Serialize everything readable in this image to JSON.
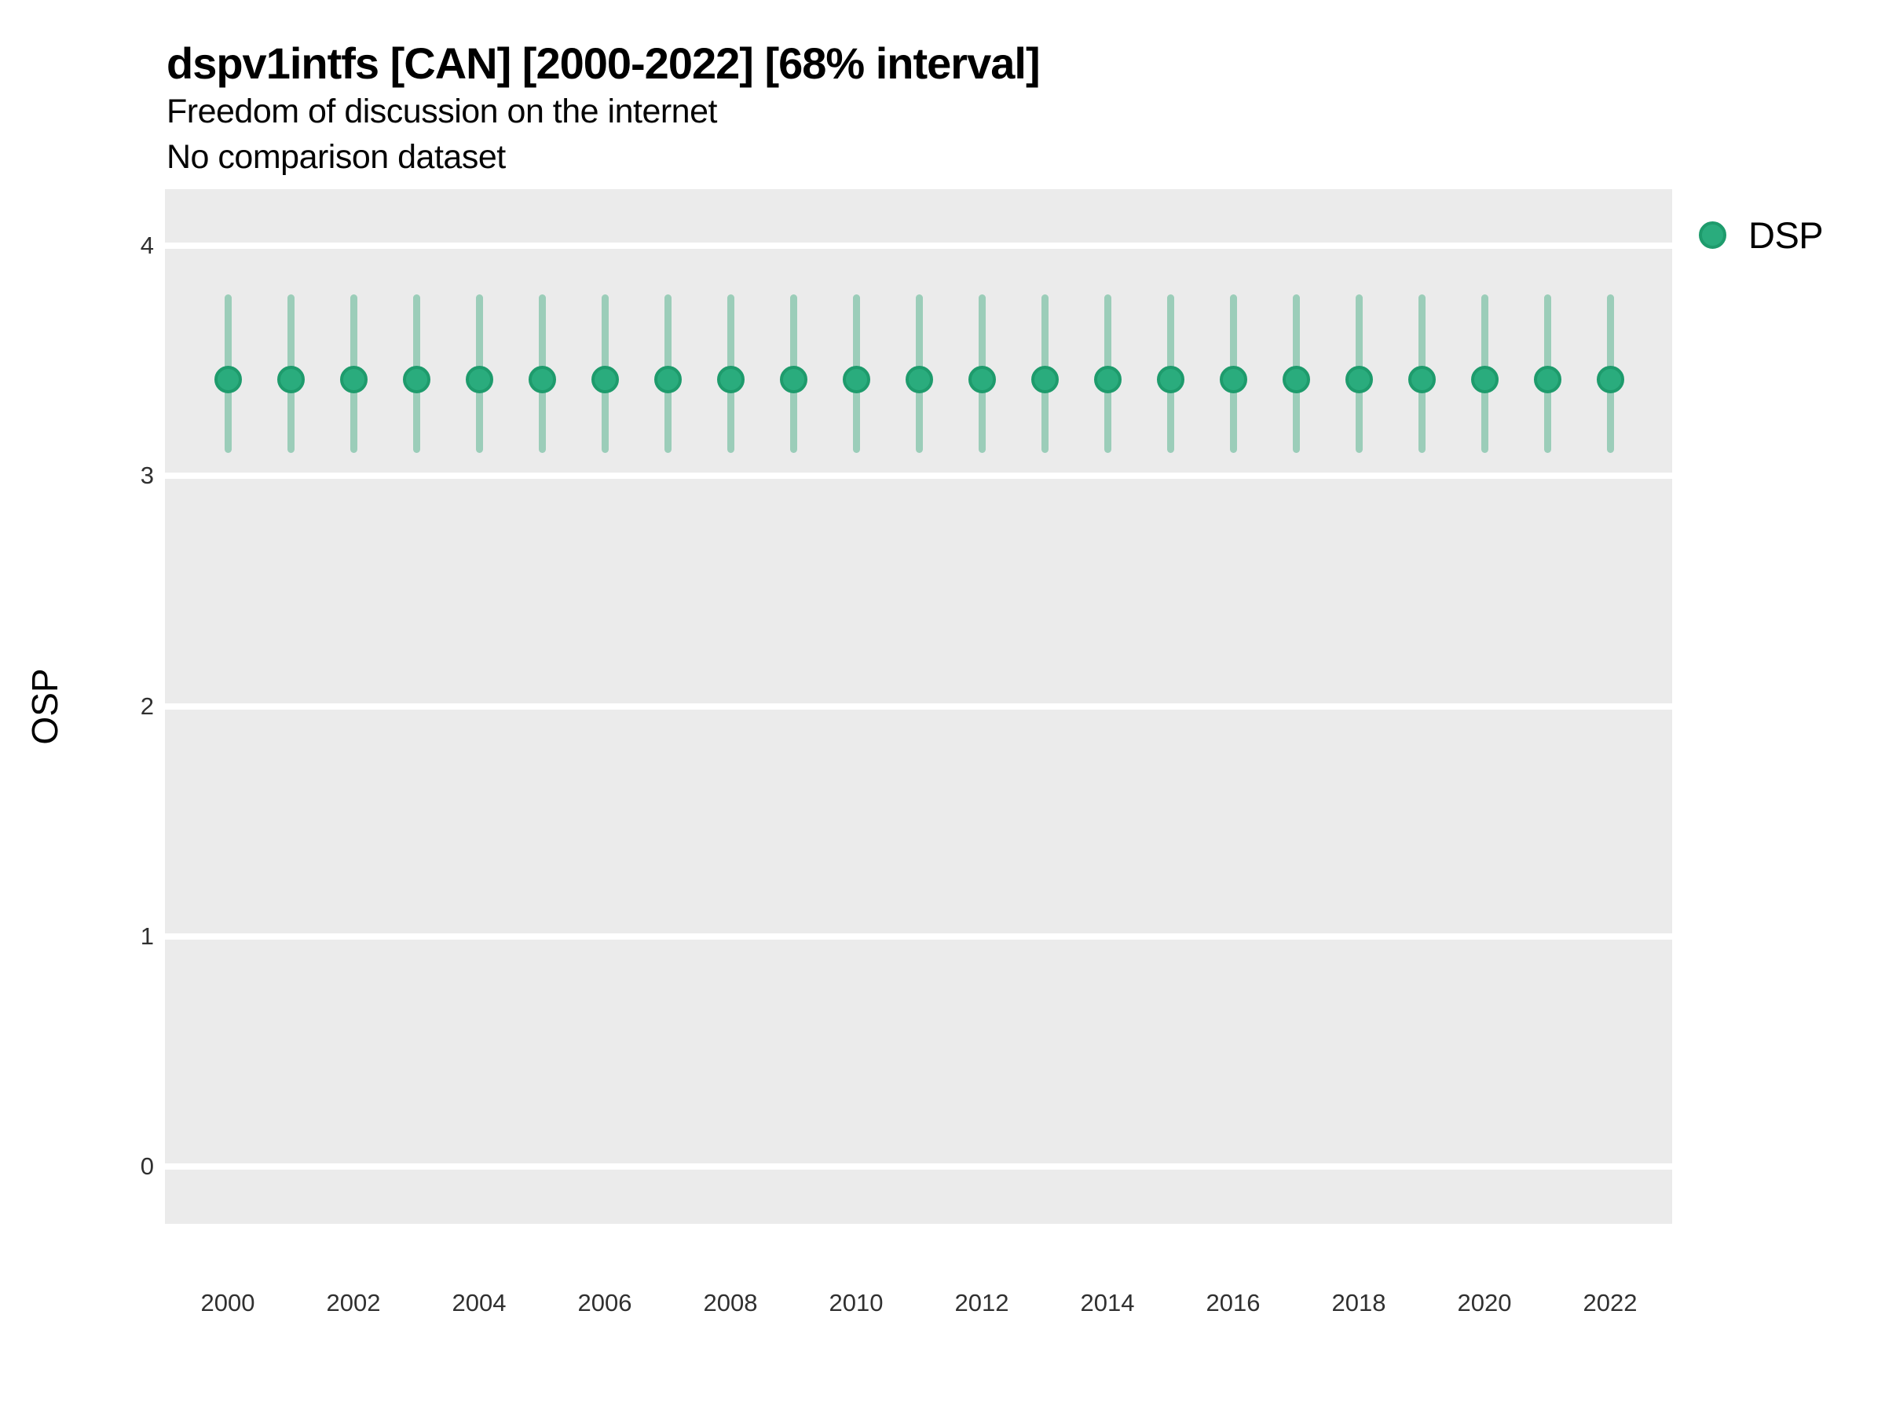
{
  "header": {
    "title": "dspv1intfs [CAN] [2000-2022] [68% interval]",
    "subtitle1": "Freedom of discussion on the internet",
    "subtitle2": "No comparison dataset"
  },
  "legend": {
    "items": [
      {
        "label": "DSP",
        "color": "#2AAC7D"
      }
    ]
  },
  "chart_data": {
    "type": "scatter",
    "subtype": "pointrange",
    "title": "dspv1intfs [CAN] [2000-2022] [68% interval]",
    "subtitle": "Freedom of discussion on the internet",
    "annotation": "No comparison dataset",
    "xlabel": "",
    "ylabel": "OSP",
    "x": [
      2000,
      2001,
      2002,
      2003,
      2004,
      2005,
      2006,
      2007,
      2008,
      2009,
      2010,
      2011,
      2012,
      2013,
      2014,
      2015,
      2016,
      2017,
      2018,
      2019,
      2020,
      2021,
      2022
    ],
    "series": [
      {
        "name": "DSP",
        "estimate": [
          3.42,
          3.42,
          3.42,
          3.42,
          3.42,
          3.42,
          3.42,
          3.42,
          3.42,
          3.42,
          3.42,
          3.42,
          3.42,
          3.42,
          3.42,
          3.42,
          3.42,
          3.42,
          3.42,
          3.42,
          3.42,
          3.42,
          3.42
        ],
        "lower_68": [
          3.1,
          3.1,
          3.1,
          3.1,
          3.1,
          3.1,
          3.1,
          3.1,
          3.1,
          3.1,
          3.1,
          3.1,
          3.1,
          3.1,
          3.1,
          3.1,
          3.1,
          3.1,
          3.1,
          3.1,
          3.1,
          3.1,
          3.1
        ],
        "upper_68": [
          3.79,
          3.79,
          3.79,
          3.79,
          3.79,
          3.79,
          3.79,
          3.79,
          3.79,
          3.79,
          3.79,
          3.79,
          3.79,
          3.79,
          3.79,
          3.79,
          3.79,
          3.79,
          3.79,
          3.79,
          3.79,
          3.79,
          3.79
        ]
      }
    ],
    "y_ticks": [
      0,
      1,
      2,
      3,
      4
    ],
    "x_tick_labels": [
      "2000",
      "2002",
      "2004",
      "2006",
      "2008",
      "2010",
      "2012",
      "2014",
      "2016",
      "2018",
      "2020",
      "2022"
    ],
    "ylim": [
      -0.25,
      4.25
    ],
    "legend_position": "right",
    "grid": "horizontal major gridlines, white on gray panel",
    "colors": {
      "point_fill": "#2AAC7D",
      "point_rim": "#1E9B6C",
      "interval_line": "#9BCDB9",
      "panel_background": "#EBEBEB",
      "gridline": "#FFFFFF"
    }
  }
}
